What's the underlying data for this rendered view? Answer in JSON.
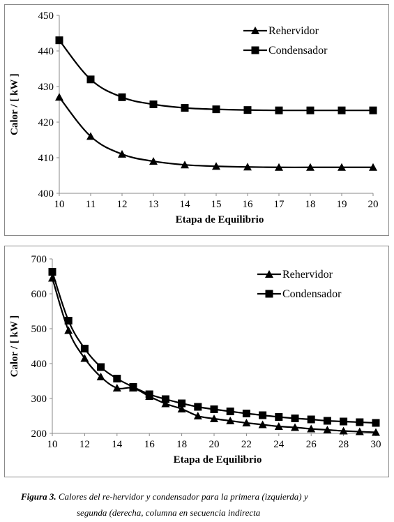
{
  "chart_data": [
    {
      "type": "line",
      "xlabel": "Etapa de Equilibrio",
      "ylabel": "Calor / [ kW ]",
      "xlim": [
        10,
        20
      ],
      "ylim": [
        400,
        450
      ],
      "xticks": [
        "10",
        "11",
        "12",
        "13",
        "14",
        "15",
        "16",
        "17",
        "18",
        "19",
        "20"
      ],
      "yticks": [
        "400",
        "410",
        "420",
        "430",
        "440",
        "450"
      ],
      "legend_position": "top-right",
      "grid": false,
      "x": [
        10,
        11,
        12,
        13,
        14,
        15,
        16,
        17,
        18,
        19,
        20
      ],
      "series": [
        {
          "name": "Rehervidor",
          "marker": "triangle",
          "values": [
            427,
            416,
            411,
            409,
            408,
            407.6,
            407.4,
            407.3,
            407.3,
            407.3,
            407.3
          ]
        },
        {
          "name": "Condensador",
          "marker": "square",
          "values": [
            443,
            432,
            427,
            425,
            424,
            423.6,
            423.4,
            423.3,
            423.3,
            423.3,
            423.3
          ]
        }
      ]
    },
    {
      "type": "line",
      "xlabel": "Etapa de Equilibrio",
      "ylabel": "Calor / [ kW ]",
      "xlim": [
        10,
        30
      ],
      "ylim": [
        200,
        700
      ],
      "xticks": [
        "10",
        "12",
        "14",
        "16",
        "18",
        "20",
        "22",
        "24",
        "26",
        "28",
        "30"
      ],
      "yticks": [
        "200",
        "300",
        "400",
        "500",
        "600",
        "700"
      ],
      "legend_position": "top-right",
      "grid": false,
      "x": [
        10,
        11,
        12,
        13,
        14,
        15,
        16,
        17,
        18,
        19,
        20,
        21,
        22,
        23,
        24,
        25,
        26,
        27,
        28,
        29,
        30
      ],
      "series": [
        {
          "name": "Rehervidor",
          "marker": "triangle",
          "values": [
            645,
            495,
            415,
            362,
            330,
            330,
            306,
            285,
            270,
            250,
            242,
            236,
            230,
            225,
            220,
            217,
            213,
            210,
            207,
            205,
            203
          ]
        },
        {
          "name": "Condensador",
          "marker": "square",
          "values": [
            663,
            523,
            443,
            390,
            357,
            333,
            312,
            298,
            286,
            276,
            269,
            263,
            257,
            252,
            247,
            243,
            240,
            236,
            234,
            232,
            230
          ]
        }
      ]
    }
  ],
  "caption": {
    "label": "Figura 3.",
    "line1": " Calores del re-hervidor y condensador para la primera (izquierda) y",
    "line2": "segunda (derecha, columna en secuencia indirecta"
  }
}
